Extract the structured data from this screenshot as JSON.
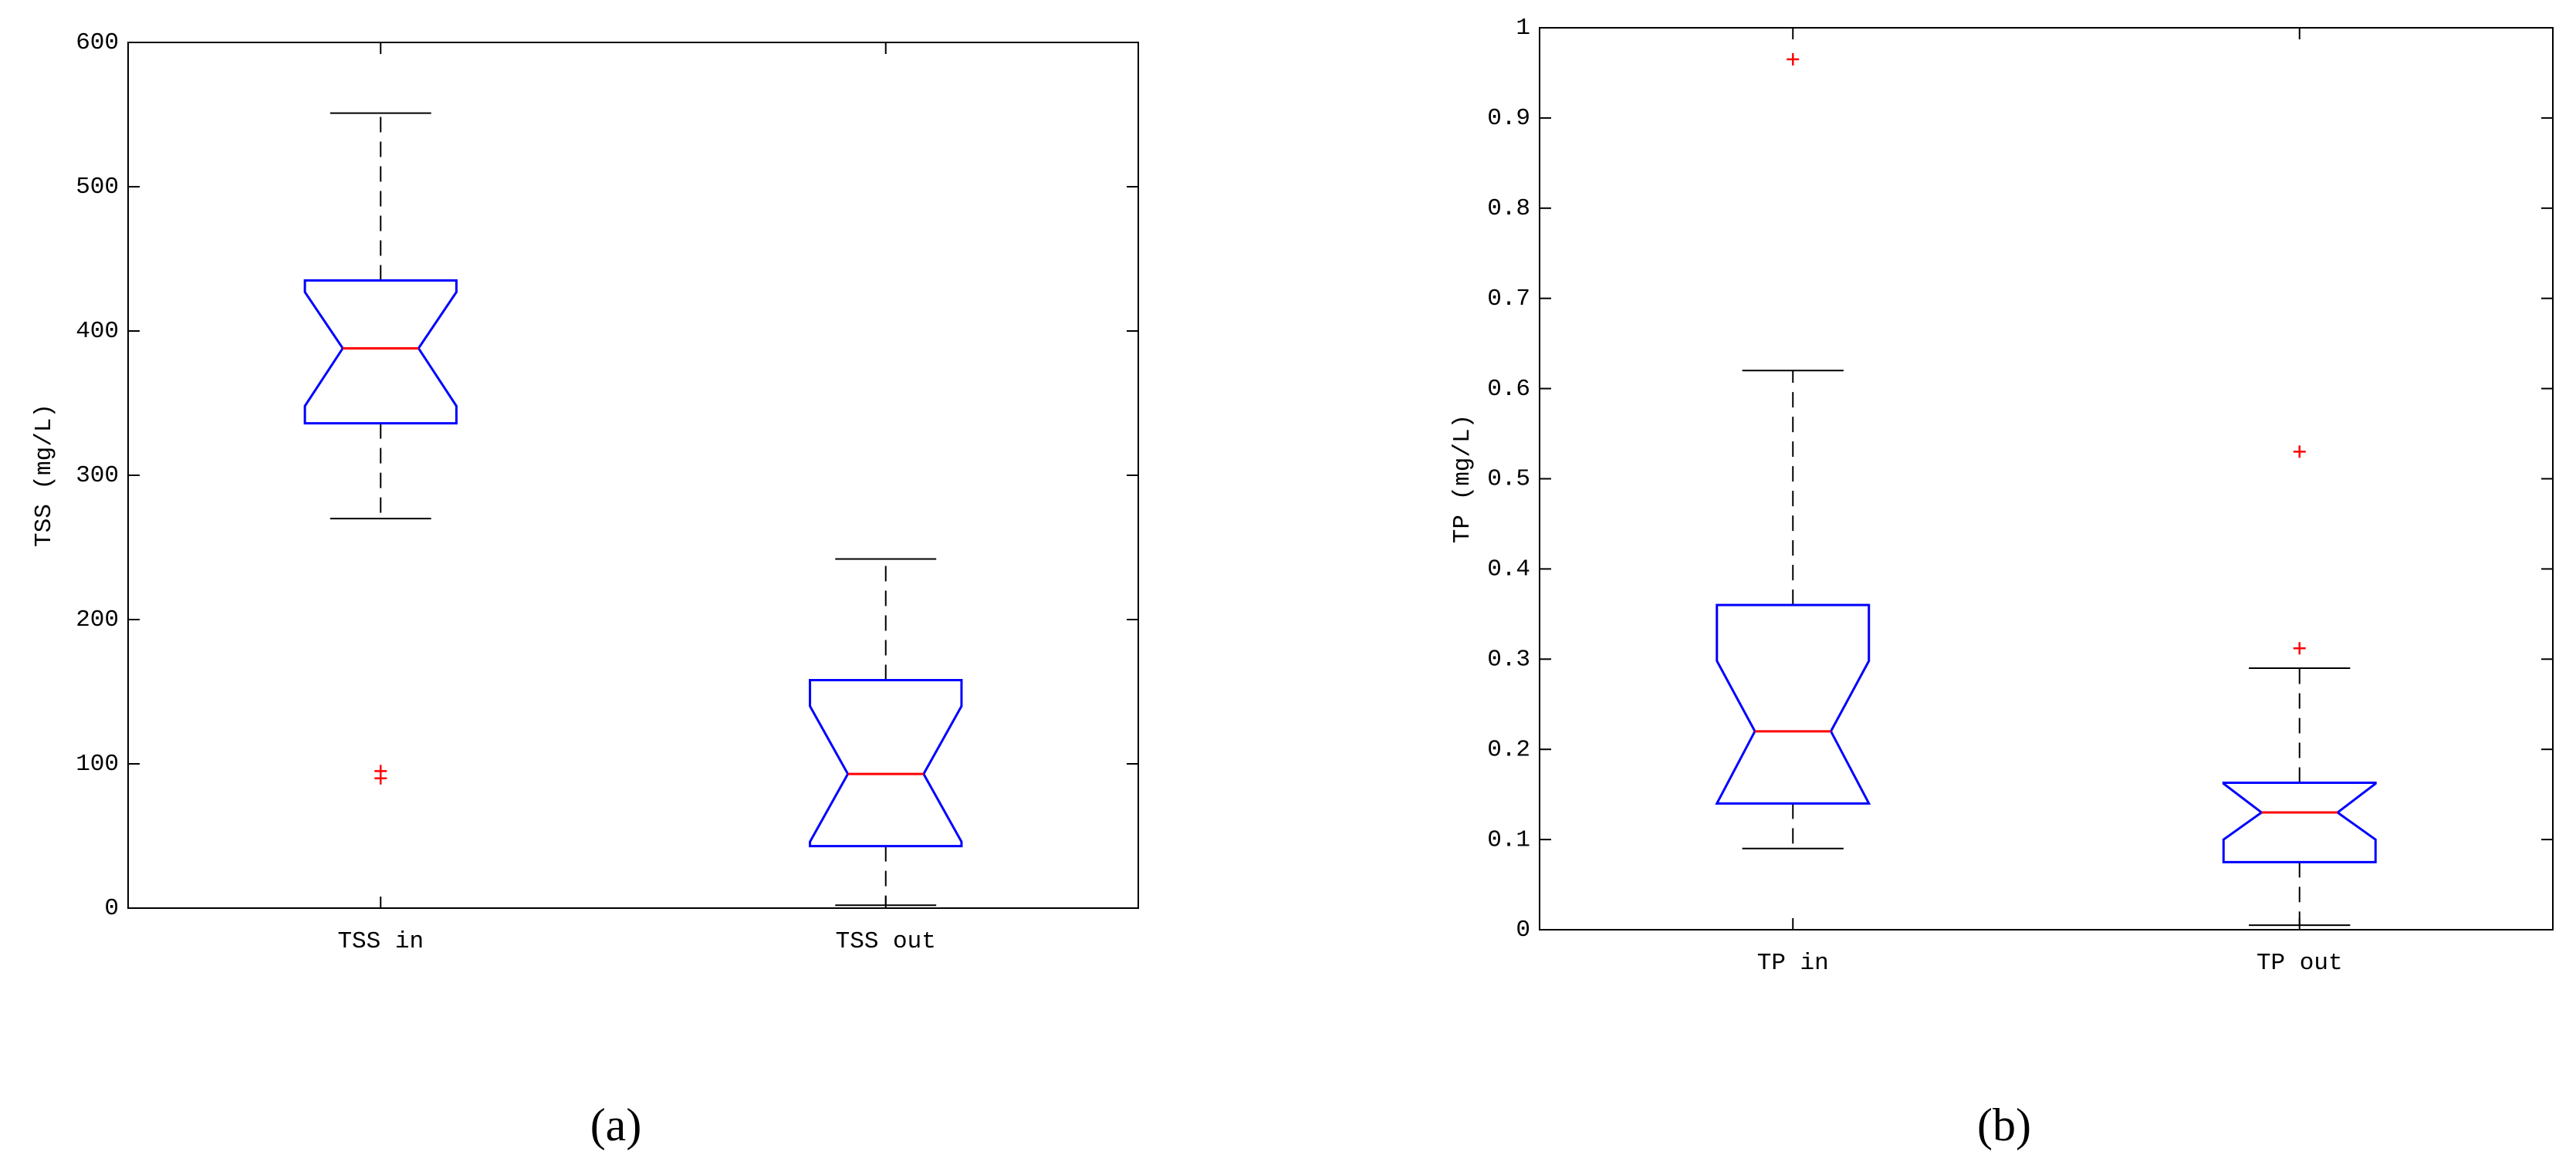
{
  "chart_data": [
    {
      "type": "box",
      "ylabel": "TSS (mg/L)",
      "panel_label": "(a)",
      "categories": [
        "TSS in",
        "TSS out"
      ],
      "ylim": [
        0,
        600
      ],
      "yticks": [
        0,
        100,
        200,
        300,
        400,
        500,
        600
      ],
      "box_color": "#0000ff",
      "median_color": "#ff0000",
      "whisker_color": "#000000",
      "outlier_color": "#ff0000",
      "values": [
        {
          "whisker_low": 270,
          "q1": 336,
          "notch_low": 348,
          "median": 388,
          "notch_high": 427,
          "q3": 435,
          "whisker_high": 551,
          "outliers": [
            95,
            90
          ]
        },
        {
          "whisker_low": 2,
          "q1": 43,
          "notch_low": 46,
          "median": 93,
          "notch_high": 140,
          "q3": 158,
          "whisker_high": 242,
          "outliers": []
        }
      ]
    },
    {
      "type": "box",
      "ylabel": "TP (mg/L)",
      "panel_label": "(b)",
      "categories": [
        "TP in",
        "TP out"
      ],
      "ylim": [
        0,
        1
      ],
      "yticks": [
        0,
        0.1,
        0.2,
        0.3,
        0.4,
        0.5,
        0.6,
        0.7,
        0.8,
        0.9,
        1
      ],
      "box_color": "#0000ff",
      "median_color": "#ff0000",
      "whisker_color": "#000000",
      "outlier_color": "#ff0000",
      "values": [
        {
          "whisker_low": 0.09,
          "q1": 0.14,
          "notch_low": 0.14,
          "median": 0.22,
          "notch_high": 0.298,
          "q3": 0.36,
          "whisker_high": 0.62,
          "outliers": [
            0.965
          ]
        },
        {
          "whisker_low": 0.005,
          "q1": 0.075,
          "notch_low": 0.1,
          "median": 0.13,
          "notch_high": 0.162,
          "q3": 0.163,
          "whisker_high": 0.29,
          "outliers": [
            0.53,
            0.312
          ]
        }
      ]
    }
  ]
}
